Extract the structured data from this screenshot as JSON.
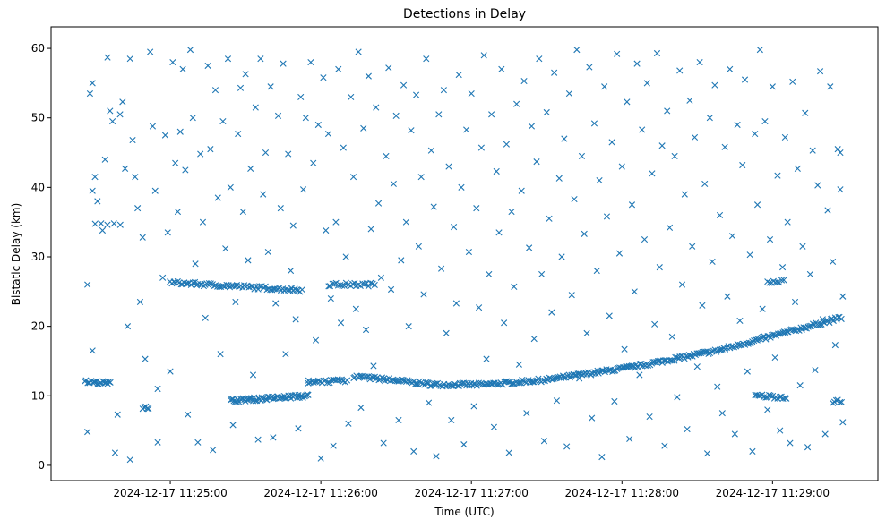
{
  "chart_data": {
    "type": "scatter",
    "title": "Detections in Delay",
    "xlabel": "Time (UTC)",
    "ylabel": "Bistatic Delay (km)",
    "x_unit": "seconds after 2024-12-17 11:24:00",
    "xlim": [
      12.5,
      342
    ],
    "ylim": [
      -2.2,
      63.1
    ],
    "xticks": [
      {
        "value": 60,
        "label": "2024-12-17 11:25:00"
      },
      {
        "value": 120,
        "label": "2024-12-17 11:26:00"
      },
      {
        "value": 180,
        "label": "2024-12-17 11:27:00"
      },
      {
        "value": 240,
        "label": "2024-12-17 11:28:00"
      },
      {
        "value": 300,
        "label": "2024-12-17 11:29:00"
      }
    ],
    "yticks": [
      {
        "value": 0,
        "label": "0"
      },
      {
        "value": 10,
        "label": "10"
      },
      {
        "value": 20,
        "label": "20"
      },
      {
        "value": 30,
        "label": "30"
      },
      {
        "value": 40,
        "label": "40"
      },
      {
        "value": 50,
        "label": "50"
      },
      {
        "value": 60,
        "label": "60"
      }
    ],
    "marker": "x",
    "color": "#1f77b4",
    "grid": false,
    "tracks": [
      {
        "t": [
          133,
          150,
          165,
          185,
          210,
          242,
          278,
          299,
          328
        ],
        "y": [
          12.8,
          12.2,
          11.6,
          11.6,
          12.3,
          14.0,
          16.5,
          18.5,
          21.3
        ],
        "step": 0.6
      },
      {
        "t": [
          60,
          113
        ],
        "y": [
          26.3,
          25.2
        ],
        "step": 0.7
      },
      {
        "t": [
          123,
          142
        ],
        "y": [
          26.0,
          26.0
        ],
        "step": 0.8
      },
      {
        "t": [
          298,
          305
        ],
        "y": [
          26.5,
          26.5
        ],
        "step": 0.8
      },
      {
        "t": [
          84,
          115
        ],
        "y": [
          9.3,
          10.0
        ],
        "step": 0.5
      },
      {
        "t": [
          293,
          306
        ],
        "y": [
          10.0,
          9.8
        ],
        "step": 0.7
      },
      {
        "t": [
          26,
          36
        ],
        "y": [
          12.0,
          11.8
        ],
        "step": 0.5
      },
      {
        "t": [
          115,
          131
        ],
        "y": [
          12.1,
          12.1
        ],
        "step": 0.7
      },
      {
        "t": [
          49,
          52
        ],
        "y": [
          8.2,
          8.2
        ],
        "step": 0.6
      },
      {
        "t": [
          324,
          328
        ],
        "y": [
          9.2,
          9.2
        ],
        "step": 0.7
      },
      {
        "t": [
          30,
          40
        ],
        "y": [
          34.8,
          34.8
        ],
        "step": 2.5
      }
    ],
    "points": [
      [
        27,
        26
      ],
      [
        28,
        53.5
      ],
      [
        29,
        55
      ],
      [
        30,
        41.5
      ],
      [
        29,
        39.5
      ],
      [
        31,
        38
      ],
      [
        27,
        4.8
      ],
      [
        29,
        16.5
      ],
      [
        33,
        33.8
      ],
      [
        34,
        44
      ],
      [
        35,
        58.7
      ],
      [
        36,
        51
      ],
      [
        37,
        49.5
      ],
      [
        38,
        1.8
      ],
      [
        39,
        7.3
      ],
      [
        40,
        50.5
      ],
      [
        41,
        52.3
      ],
      [
        42,
        42.7
      ],
      [
        43,
        20
      ],
      [
        44,
        0.8
      ],
      [
        44,
        58.5
      ],
      [
        45,
        46.8
      ],
      [
        46,
        41.5
      ],
      [
        47,
        37
      ],
      [
        48,
        23.5
      ],
      [
        49,
        32.8
      ],
      [
        50,
        15.3
      ],
      [
        52,
        59.5
      ],
      [
        53,
        48.8
      ],
      [
        54,
        39.5
      ],
      [
        55,
        11
      ],
      [
        55,
        3.3
      ],
      [
        57,
        27
      ],
      [
        58,
        47.5
      ],
      [
        59,
        33.5
      ],
      [
        60,
        13.5
      ],
      [
        61,
        58
      ],
      [
        62,
        43.5
      ],
      [
        63,
        36.5
      ],
      [
        64,
        48
      ],
      [
        65,
        57
      ],
      [
        66,
        42.5
      ],
      [
        67,
        7.3
      ],
      [
        68,
        59.8
      ],
      [
        69,
        50
      ],
      [
        70,
        29
      ],
      [
        71,
        3.3
      ],
      [
        72,
        44.8
      ],
      [
        73,
        35
      ],
      [
        74,
        21.2
      ],
      [
        75,
        57.5
      ],
      [
        76,
        45.5
      ],
      [
        77,
        2.2
      ],
      [
        78,
        54
      ],
      [
        79,
        38.5
      ],
      [
        80,
        16
      ],
      [
        81,
        49.5
      ],
      [
        82,
        31.2
      ],
      [
        83,
        58.5
      ],
      [
        84,
        40
      ],
      [
        85,
        5.8
      ],
      [
        86,
        23.5
      ],
      [
        87,
        47.7
      ],
      [
        88,
        54.3
      ],
      [
        89,
        36.5
      ],
      [
        90,
        56.3
      ],
      [
        91,
        29.5
      ],
      [
        92,
        42.7
      ],
      [
        93,
        13
      ],
      [
        94,
        51.5
      ],
      [
        95,
        3.7
      ],
      [
        96,
        58.5
      ],
      [
        97,
        39
      ],
      [
        98,
        45
      ],
      [
        99,
        30.7
      ],
      [
        100,
        54.5
      ],
      [
        101,
        4
      ],
      [
        102,
        23.3
      ],
      [
        103,
        50.3
      ],
      [
        104,
        37
      ],
      [
        105,
        57.8
      ],
      [
        106,
        16
      ],
      [
        107,
        44.8
      ],
      [
        108,
        28
      ],
      [
        109,
        34.5
      ],
      [
        110,
        21
      ],
      [
        111,
        5.3
      ],
      [
        112,
        53
      ],
      [
        113,
        39.7
      ],
      [
        114,
        50
      ],
      [
        115,
        11.8
      ],
      [
        116,
        58
      ],
      [
        117,
        43.5
      ],
      [
        118,
        18
      ],
      [
        119,
        49
      ],
      [
        120,
        1
      ],
      [
        121,
        55.8
      ],
      [
        122,
        33.8
      ],
      [
        123,
        47.7
      ],
      [
        124,
        24
      ],
      [
        125,
        2.8
      ],
      [
        126,
        35
      ],
      [
        127,
        57
      ],
      [
        128,
        20.5
      ],
      [
        129,
        45.7
      ],
      [
        130,
        30
      ],
      [
        131,
        6
      ],
      [
        132,
        53
      ],
      [
        133,
        41.5
      ],
      [
        134,
        22.5
      ],
      [
        135,
        59.5
      ],
      [
        136,
        8.3
      ],
      [
        137,
        48.5
      ],
      [
        138,
        19.5
      ],
      [
        139,
        56
      ],
      [
        140,
        34
      ],
      [
        141,
        14.3
      ],
      [
        142,
        51.5
      ],
      [
        143,
        37.7
      ],
      [
        144,
        27
      ],
      [
        145,
        3.2
      ],
      [
        146,
        44.5
      ],
      [
        147,
        57.2
      ],
      [
        148,
        25.3
      ],
      [
        149,
        40.5
      ],
      [
        150,
        50.3
      ],
      [
        151,
        6.5
      ],
      [
        152,
        29.5
      ],
      [
        153,
        54.7
      ],
      [
        154,
        35
      ],
      [
        155,
        20
      ],
      [
        156,
        48.2
      ],
      [
        157,
        2
      ],
      [
        158,
        53.3
      ],
      [
        159,
        31.5
      ],
      [
        160,
        41.5
      ],
      [
        161,
        24.6
      ],
      [
        162,
        58.5
      ],
      [
        163,
        9
      ],
      [
        164,
        45.3
      ],
      [
        165,
        37.2
      ],
      [
        166,
        1.3
      ],
      [
        167,
        50.5
      ],
      [
        168,
        28.3
      ],
      [
        169,
        54
      ],
      [
        170,
        19
      ],
      [
        171,
        43
      ],
      [
        172,
        6.5
      ],
      [
        173,
        34.3
      ],
      [
        174,
        23.3
      ],
      [
        175,
        56.2
      ],
      [
        176,
        40
      ],
      [
        177,
        3
      ],
      [
        178,
        48.3
      ],
      [
        179,
        30.7
      ],
      [
        180,
        53.5
      ],
      [
        181,
        8.5
      ],
      [
        182,
        37
      ],
      [
        183,
        22.7
      ],
      [
        184,
        45.7
      ],
      [
        185,
        59
      ],
      [
        186,
        15.3
      ],
      [
        187,
        27.5
      ],
      [
        188,
        50.5
      ],
      [
        189,
        5.5
      ],
      [
        190,
        42.3
      ],
      [
        191,
        33.5
      ],
      [
        192,
        57
      ],
      [
        193,
        20.5
      ],
      [
        194,
        46.2
      ],
      [
        195,
        1.8
      ],
      [
        196,
        36.5
      ],
      [
        197,
        25.7
      ],
      [
        198,
        52
      ],
      [
        199,
        14.5
      ],
      [
        200,
        39.5
      ],
      [
        201,
        55.3
      ],
      [
        202,
        7.5
      ],
      [
        203,
        31.3
      ],
      [
        204,
        48.8
      ],
      [
        205,
        18.2
      ],
      [
        206,
        43.7
      ],
      [
        207,
        58.5
      ],
      [
        208,
        27.5
      ],
      [
        209,
        3.5
      ],
      [
        210,
        50.8
      ],
      [
        211,
        35.5
      ],
      [
        212,
        22
      ],
      [
        213,
        56.5
      ],
      [
        214,
        9.3
      ],
      [
        215,
        41.3
      ],
      [
        216,
        30
      ],
      [
        217,
        47
      ],
      [
        218,
        2.7
      ],
      [
        219,
        53.5
      ],
      [
        220,
        24.5
      ],
      [
        221,
        38.3
      ],
      [
        222,
        59.8
      ],
      [
        223,
        12.5
      ],
      [
        224,
        44.5
      ],
      [
        225,
        33.3
      ],
      [
        226,
        19
      ],
      [
        227,
        57.3
      ],
      [
        228,
        6.8
      ],
      [
        229,
        49.2
      ],
      [
        230,
        28
      ],
      [
        231,
        41
      ],
      [
        232,
        1.2
      ],
      [
        233,
        54.5
      ],
      [
        234,
        35.8
      ],
      [
        235,
        21.5
      ],
      [
        236,
        46.5
      ],
      [
        237,
        9.2
      ],
      [
        238,
        59.2
      ],
      [
        239,
        30.5
      ],
      [
        240,
        43
      ],
      [
        241,
        16.7
      ],
      [
        242,
        52.3
      ],
      [
        243,
        3.8
      ],
      [
        244,
        37.5
      ],
      [
        245,
        25
      ],
      [
        246,
        57.8
      ],
      [
        247,
        13
      ],
      [
        248,
        48.3
      ],
      [
        249,
        32.5
      ],
      [
        250,
        55
      ],
      [
        251,
        7
      ],
      [
        252,
        42
      ],
      [
        253,
        20.3
      ],
      [
        254,
        59.3
      ],
      [
        255,
        28.5
      ],
      [
        256,
        46
      ],
      [
        257,
        2.8
      ],
      [
        258,
        51
      ],
      [
        259,
        34.2
      ],
      [
        260,
        18.5
      ],
      [
        261,
        44.5
      ],
      [
        262,
        9.8
      ],
      [
        263,
        56.8
      ],
      [
        264,
        26
      ],
      [
        265,
        39
      ],
      [
        266,
        5.2
      ],
      [
        267,
        52.5
      ],
      [
        268,
        31.5
      ],
      [
        269,
        47.2
      ],
      [
        270,
        14.2
      ],
      [
        271,
        58
      ],
      [
        272,
        23
      ],
      [
        273,
        40.5
      ],
      [
        274,
        1.7
      ],
      [
        275,
        50
      ],
      [
        276,
        29.3
      ],
      [
        277,
        54.7
      ],
      [
        278,
        11.3
      ],
      [
        279,
        36
      ],
      [
        280,
        7.5
      ],
      [
        281,
        45.8
      ],
      [
        282,
        24.3
      ],
      [
        283,
        57
      ],
      [
        284,
        33
      ],
      [
        285,
        4.5
      ],
      [
        286,
        49
      ],
      [
        287,
        20.8
      ],
      [
        288,
        43.2
      ],
      [
        289,
        55.5
      ],
      [
        290,
        13.5
      ],
      [
        291,
        30.3
      ],
      [
        292,
        2
      ],
      [
        293,
        47.7
      ],
      [
        294,
        37.5
      ],
      [
        295,
        59.8
      ],
      [
        296,
        22.5
      ],
      [
        297,
        49.5
      ],
      [
        298,
        8
      ],
      [
        299,
        32.5
      ],
      [
        300,
        54.5
      ],
      [
        301,
        15.5
      ],
      [
        302,
        41.7
      ],
      [
        303,
        5
      ],
      [
        304,
        28.5
      ],
      [
        305,
        47.2
      ],
      [
        306,
        35
      ],
      [
        307,
        3.2
      ],
      [
        308,
        55.2
      ],
      [
        309,
        23.5
      ],
      [
        310,
        42.7
      ],
      [
        311,
        11.5
      ],
      [
        312,
        31.5
      ],
      [
        313,
        50.7
      ],
      [
        314,
        2.6
      ],
      [
        315,
        27.5
      ],
      [
        316,
        45.3
      ],
      [
        317,
        13.7
      ],
      [
        318,
        40.3
      ],
      [
        319,
        56.7
      ],
      [
        320,
        21
      ],
      [
        321,
        4.5
      ],
      [
        322,
        36.7
      ],
      [
        323,
        54.5
      ],
      [
        324,
        29.3
      ],
      [
        325,
        17.3
      ],
      [
        326,
        45.5
      ],
      [
        327,
        39.7
      ],
      [
        328,
        6.2
      ],
      [
        328,
        24.3
      ],
      [
        327,
        45
      ]
    ]
  }
}
